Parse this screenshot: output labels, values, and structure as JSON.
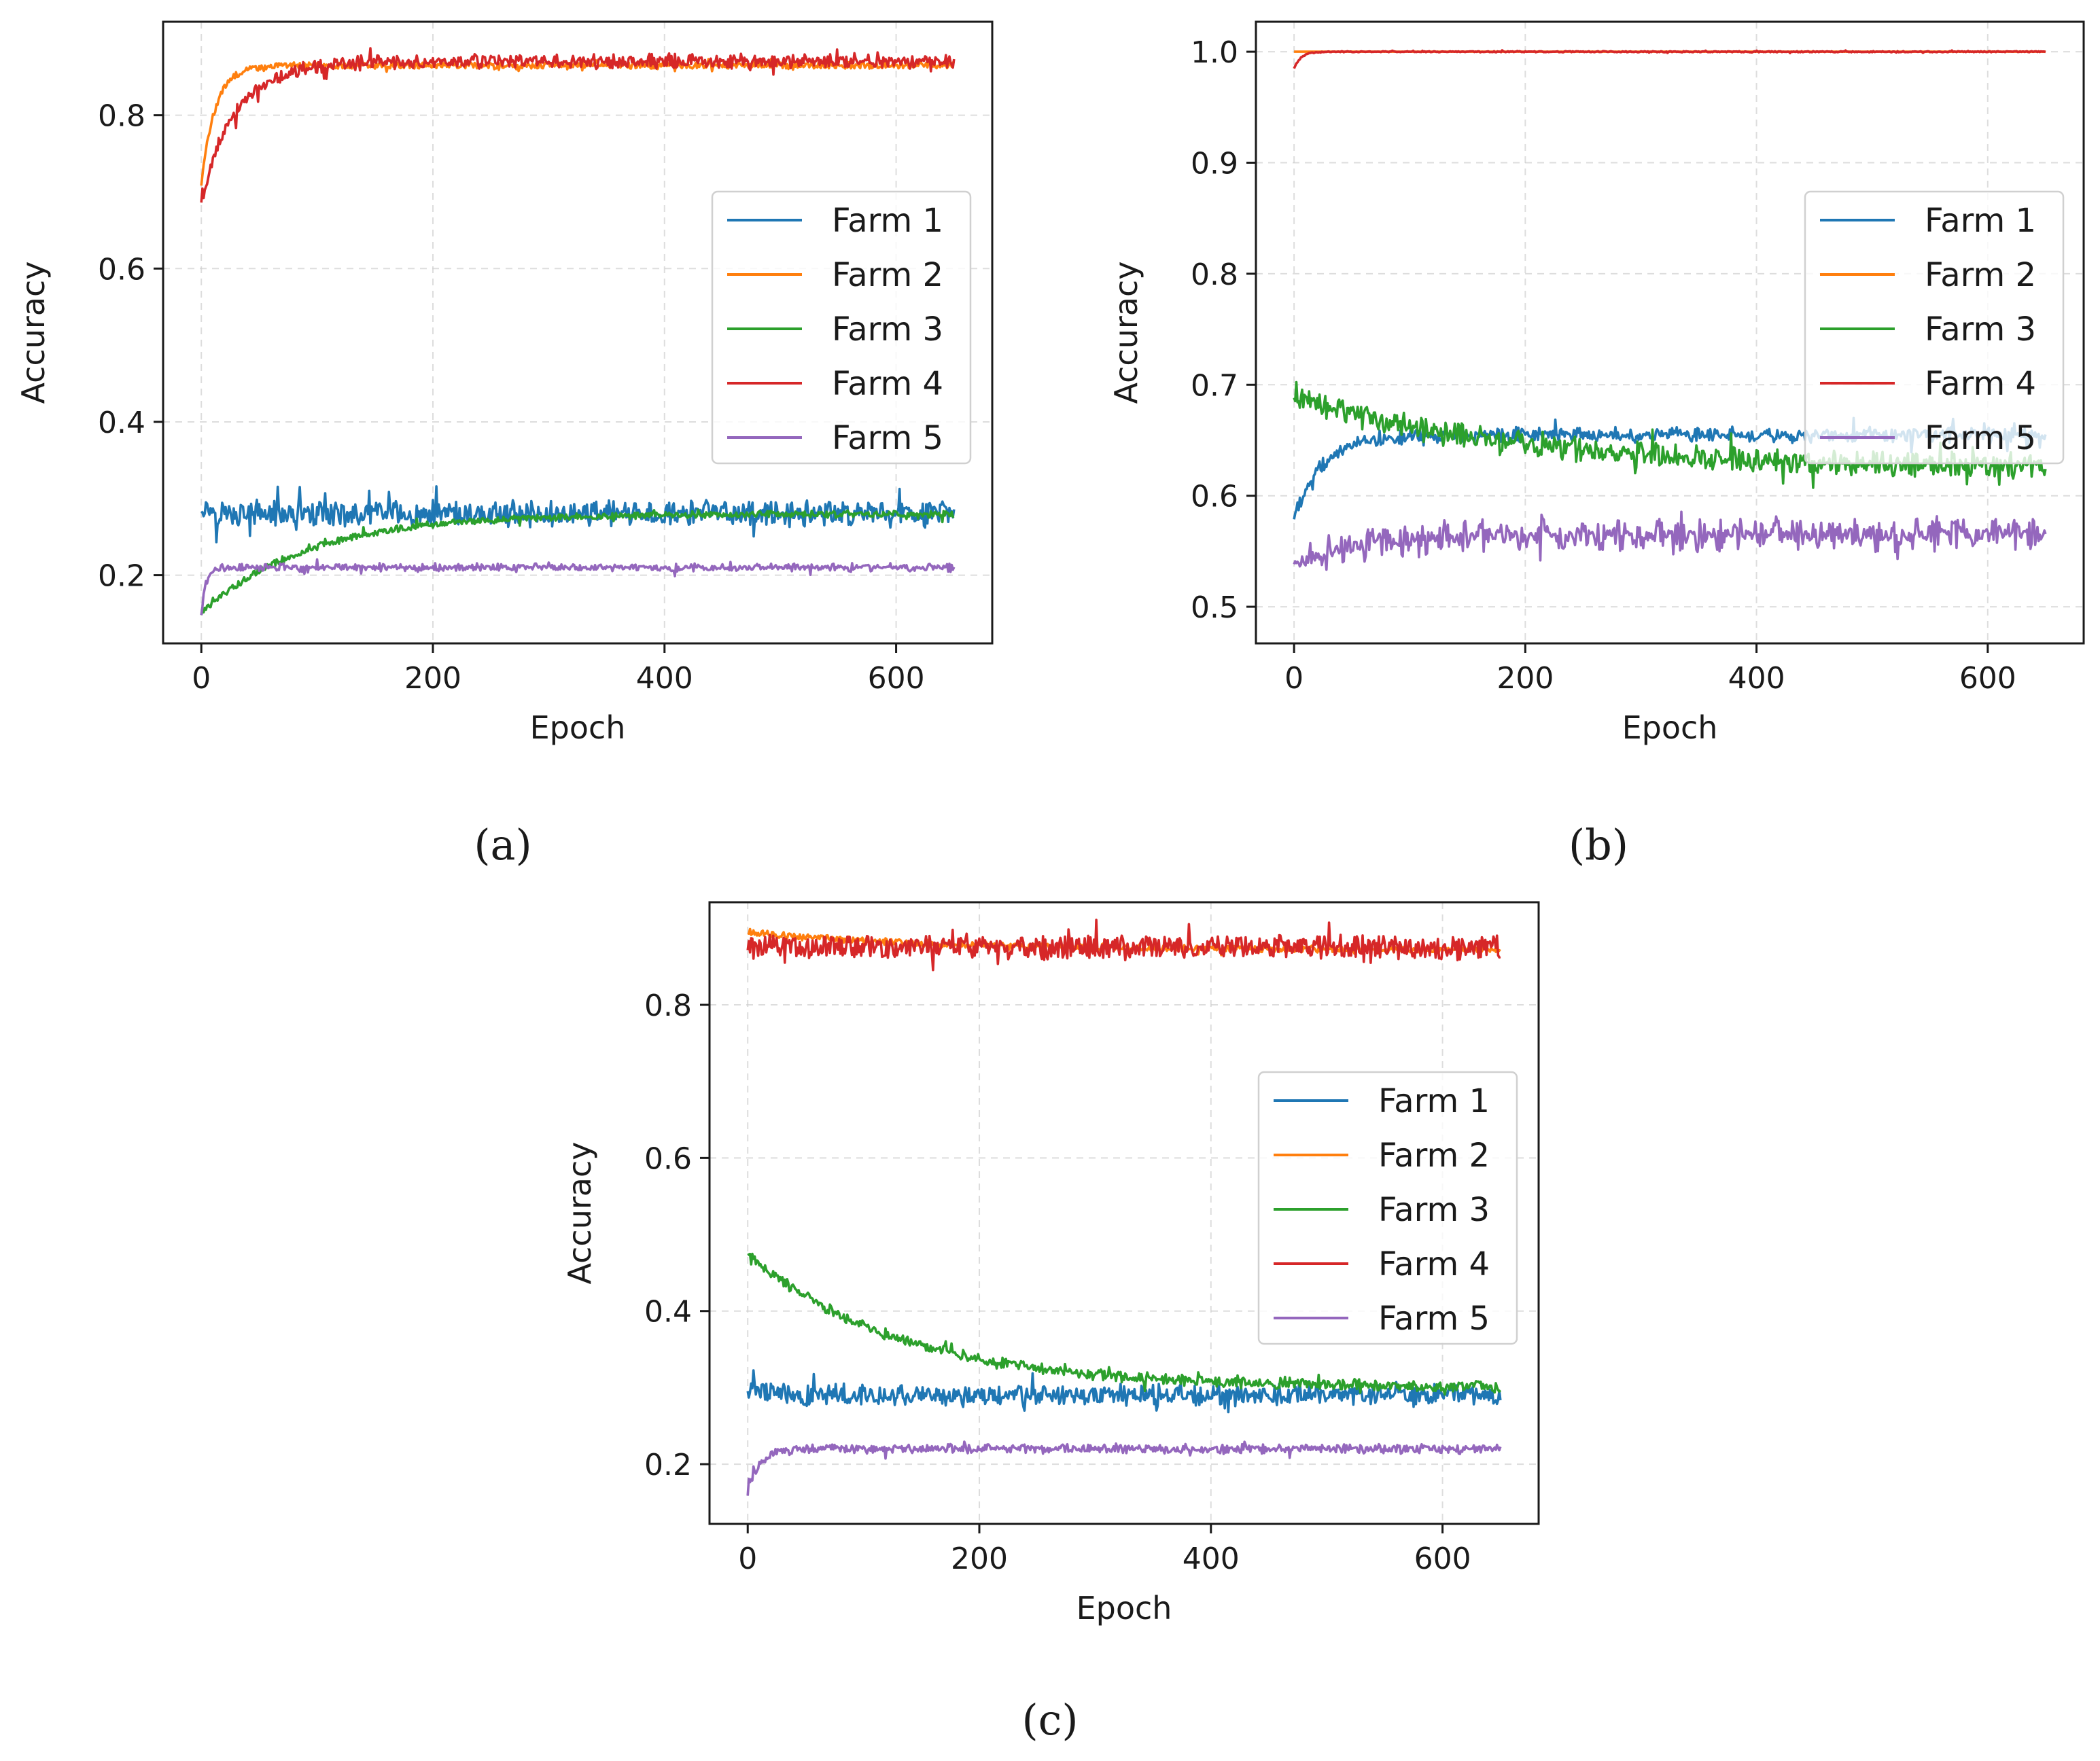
{
  "chart_data": [
    {
      "id": "a",
      "type": "line",
      "caption": "(a)",
      "xlabel": "Epoch",
      "ylabel": "Accuracy",
      "xlim": [
        -33,
        683
      ],
      "ylim": [
        0.111,
        0.922
      ],
      "xticks": [
        0,
        200,
        400,
        600
      ],
      "xtick_labels": [
        "0",
        "200",
        "400",
        "600"
      ],
      "yticks": [
        0.2,
        0.4,
        0.6,
        0.8
      ],
      "ytick_labels": [
        "0.2",
        "0.4",
        "0.6",
        "0.8"
      ],
      "grid": true,
      "legend_position": "center-right",
      "epochs": 650,
      "series": [
        {
          "name": "Farm 1",
          "color": "#1f77b4",
          "start": 0.29,
          "final": 0.28,
          "tau": 15,
          "noise": 0.014,
          "spread": 0.29,
          "min_epoch": 0
        },
        {
          "name": "Farm 2",
          "color": "#ff7f0e",
          "start": 0.71,
          "final": 0.865,
          "tau": 12,
          "noise": 0.004,
          "spread": 0.05,
          "min_epoch": 0
        },
        {
          "name": "Farm 3",
          "color": "#2ca02c",
          "start": 0.15,
          "final": 0.28,
          "tau": 90,
          "noise": 0.004,
          "spread": 0.2,
          "min_epoch": 0
        },
        {
          "name": "Farm 4",
          "color": "#d62728",
          "start": 0.69,
          "final": 0.87,
          "tau": 30,
          "noise": 0.008,
          "spread": 0.3,
          "min_epoch": 0
        },
        {
          "name": "Farm 5",
          "color": "#9467bd",
          "start": 0.15,
          "final": 0.21,
          "tau": 4,
          "noise": 0.004,
          "spread": 0.45,
          "min_epoch": 0
        }
      ]
    },
    {
      "id": "b",
      "type": "line",
      "caption": "(b)",
      "xlabel": "Epoch",
      "ylabel": "Accuracy",
      "xlim": [
        -33,
        683
      ],
      "ylim": [
        0.467,
        1.027
      ],
      "xticks": [
        0,
        200,
        400,
        600
      ],
      "xtick_labels": [
        "0",
        "200",
        "400",
        "600"
      ],
      "yticks": [
        0.5,
        0.6,
        0.7,
        0.8,
        0.9,
        1.0
      ],
      "ytick_labels": [
        "0.5",
        "0.6",
        "0.7",
        "0.8",
        "0.9",
        "1.0"
      ],
      "grid": true,
      "legend_position": "center-right",
      "epochs": 650,
      "series": [
        {
          "name": "Farm 1",
          "color": "#1f77b4",
          "start": 0.58,
          "final": 0.655,
          "tau": 25,
          "noise": 0.005,
          "spread": 0.5,
          "min_epoch": 0
        },
        {
          "name": "Farm 2",
          "color": "#ff7f0e",
          "start": 1.0,
          "final": 1.0,
          "tau": 1,
          "noise": 0.0,
          "spread": 0.0,
          "min_epoch": 0
        },
        {
          "name": "Farm 3",
          "color": "#2ca02c",
          "start": 0.69,
          "final": 0.625,
          "tau": 180,
          "noise": 0.009,
          "spread": 0.4,
          "min_epoch": 0
        },
        {
          "name": "Farm 4",
          "color": "#d62728",
          "start": 0.985,
          "final": 1.0,
          "tau": 6,
          "noise": 0.0005,
          "spread": 0.1,
          "min_epoch": 0
        },
        {
          "name": "Farm 5",
          "color": "#9467bd",
          "start": 0.54,
          "final": 0.565,
          "tau": 60,
          "noise": 0.01,
          "spread": 0.6,
          "min_epoch": 0
        }
      ]
    },
    {
      "id": "c",
      "type": "line",
      "caption": "(c)",
      "xlabel": "Epoch",
      "ylabel": "Accuracy",
      "xlim": [
        -33,
        683
      ],
      "ylim": [
        0.122,
        0.934
      ],
      "xticks": [
        0,
        200,
        400,
        600
      ],
      "xtick_labels": [
        "0",
        "200",
        "400",
        "600"
      ],
      "yticks": [
        0.2,
        0.4,
        0.6,
        0.8
      ],
      "ytick_labels": [
        "0.2",
        "0.4",
        "0.6",
        "0.8"
      ],
      "grid": true,
      "legend_position": "center-right",
      "epochs": 650,
      "series": [
        {
          "name": "Farm 1",
          "color": "#1f77b4",
          "start": 0.3,
          "final": 0.29,
          "tau": 20,
          "noise": 0.012,
          "spread": 0.29,
          "min_epoch": 0
        },
        {
          "name": "Farm 2",
          "color": "#ff7f0e",
          "start": 0.895,
          "final": 0.872,
          "tau": 150,
          "noise": 0.004,
          "spread": 0.15,
          "min_epoch": 0
        },
        {
          "name": "Farm 3",
          "color": "#2ca02c",
          "start": 0.475,
          "final": 0.3,
          "tau": 130,
          "noise": 0.006,
          "spread": 0.3,
          "min_epoch": 0
        },
        {
          "name": "Farm 4",
          "color": "#d62728",
          "start": 0.875,
          "final": 0.875,
          "tau": 10,
          "noise": 0.014,
          "spread": 0.2,
          "min_epoch": 0
        },
        {
          "name": "Farm 5",
          "color": "#9467bd",
          "start": 0.16,
          "final": 0.22,
          "tau": 10,
          "noise": 0.005,
          "spread": 0.35,
          "min_epoch": 0
        }
      ]
    }
  ]
}
